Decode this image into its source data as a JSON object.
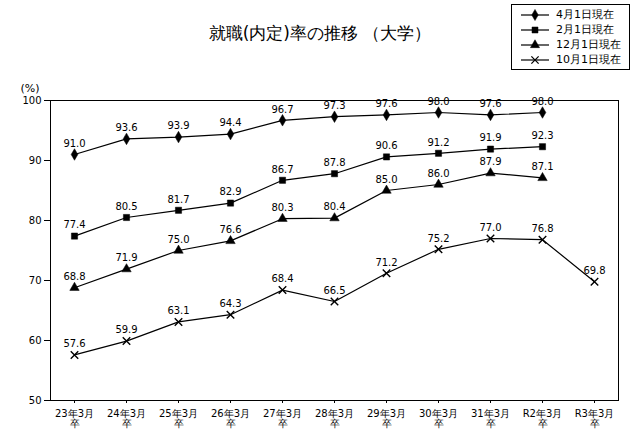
{
  "chart_data": {
    "type": "line",
    "title": "就職(内定)率の推移 （大学）",
    "y_label": "(%)",
    "categories": [
      "23年3月卒",
      "24年3月卒",
      "25年3月卒",
      "26年3月卒",
      "27年3月卒",
      "28年3月卒",
      "29年3月卒",
      "30年3月卒",
      "31年3月卒",
      "R2年3月卒",
      "R3年3月卒"
    ],
    "series": [
      {
        "name": "4月1日現在",
        "color": "#000000",
        "marker": "diamond",
        "values": [
          91.0,
          93.6,
          93.9,
          94.4,
          96.7,
          97.3,
          97.6,
          98.0,
          97.6,
          98.0,
          null
        ],
        "value_labels": [
          "91.0",
          "93.6",
          "93.9",
          "94.4",
          "96.7",
          "97.3",
          "97.6",
          "98.0",
          "97.6",
          "98.0",
          null
        ]
      },
      {
        "name": "2月1日現在",
        "color": "#000000",
        "marker": "square",
        "values": [
          77.4,
          80.5,
          81.7,
          82.9,
          86.7,
          87.8,
          90.6,
          91.2,
          91.9,
          92.3,
          null
        ],
        "value_labels": [
          "77.4",
          "80.5",
          "81.7",
          "82.9",
          "86.7",
          "87.8",
          "90.6",
          "91.2",
          "91.9",
          "92.3",
          null
        ]
      },
      {
        "name": "12月1日現在",
        "color": "#000000",
        "marker": "triangle",
        "values": [
          68.8,
          71.9,
          75.0,
          76.6,
          80.3,
          80.4,
          85.0,
          86.0,
          87.9,
          87.1,
          null
        ],
        "value_labels": [
          "68.8",
          "71.9",
          "75.0",
          "76.6",
          "80.3",
          "80.4",
          "85.0",
          "86.0",
          "87.9",
          "87.1",
          null
        ]
      },
      {
        "name": "10月1日現在",
        "color": "#000000",
        "marker": "x",
        "values": [
          57.6,
          59.9,
          63.1,
          64.3,
          68.4,
          66.5,
          71.2,
          75.2,
          77.0,
          76.8,
          69.8
        ],
        "value_labels": [
          "57.6",
          "59.9",
          "63.1",
          "64.3",
          "68.4",
          "66.5",
          "71.2",
          "75.2",
          "77.0",
          "76.8",
          "69.8"
        ]
      }
    ],
    "ylim": [
      50,
      100
    ],
    "yticks": [
      50,
      60,
      70,
      80,
      90,
      100
    ],
    "grid": false,
    "legend": "top-right",
    "data_labels": true
  }
}
